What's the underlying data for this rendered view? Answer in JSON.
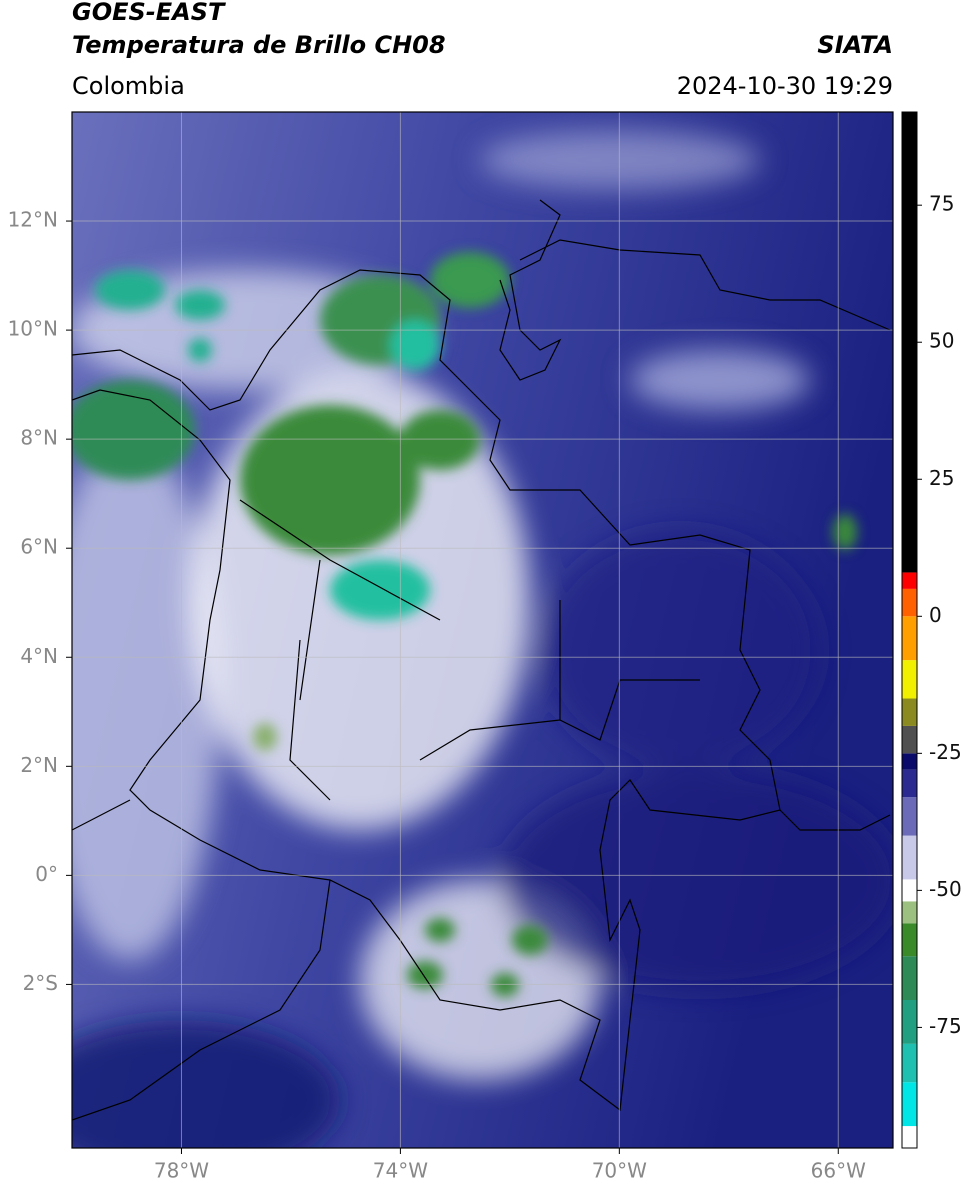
{
  "header": {
    "title_line1": "GOES-EAST",
    "title_line2": "Temperatura de Brillo CH08",
    "source": "SIATA",
    "region": "Colombia",
    "datetime": "2024-10-30 19:29"
  },
  "map": {
    "lonlim": [
      -80,
      -65
    ],
    "latlim": [
      -5,
      14
    ],
    "lonticks": [
      {
        "value": -78,
        "label": "78°W"
      },
      {
        "value": -74,
        "label": "74°W"
      },
      {
        "value": -70,
        "label": "70°W"
      },
      {
        "value": -66,
        "label": "66°W"
      }
    ],
    "latticks": [
      {
        "value": 12,
        "label": "12°N"
      },
      {
        "value": 10,
        "label": "10°N"
      },
      {
        "value": 8,
        "label": "8°N"
      },
      {
        "value": 6,
        "label": "6°N"
      },
      {
        "value": 4,
        "label": "4°N"
      },
      {
        "value": 2,
        "label": "2°N"
      },
      {
        "value": 0,
        "label": "0°"
      },
      {
        "value": -2,
        "label": "2°S"
      }
    ],
    "grid": true
  },
  "colorbar": {
    "lim": [
      -97,
      92
    ],
    "ticks": [
      75,
      50,
      25,
      0,
      -25,
      -50,
      -75
    ],
    "stops": [
      {
        "value": -97,
        "color": "#ffffff"
      },
      {
        "value": -93,
        "color": "#00e5e5"
      },
      {
        "value": -85,
        "color": "#20c0b0"
      },
      {
        "value": -78,
        "color": "#20a080"
      },
      {
        "value": -70,
        "color": "#2e8b57"
      },
      {
        "value": -62,
        "color": "#3a8a2a"
      },
      {
        "value": -56,
        "color": "#9cc080"
      },
      {
        "value": -52,
        "color": "#ffffff"
      },
      {
        "value": -48,
        "color": "#c8c8e8"
      },
      {
        "value": -40,
        "color": "#6a6ab8"
      },
      {
        "value": -33,
        "color": "#2a2a90"
      },
      {
        "value": -28,
        "color": "#0a0a6a"
      },
      {
        "value": -25,
        "color": "#505050"
      },
      {
        "value": -20,
        "color": "#8a8a20"
      },
      {
        "value": -15,
        "color": "#f0f000"
      },
      {
        "value": -8,
        "color": "#ffa000"
      },
      {
        "value": 0,
        "color": "#ff6000"
      },
      {
        "value": 5,
        "color": "#ff0000"
      },
      {
        "value": 8,
        "color": "#000000"
      }
    ]
  }
}
